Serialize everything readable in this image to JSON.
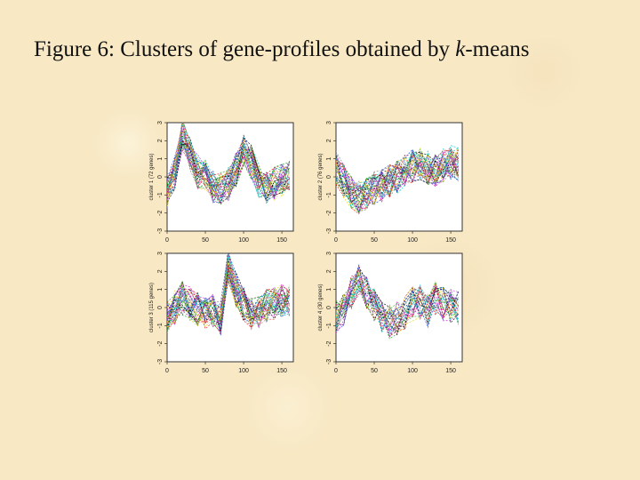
{
  "slide": {
    "title_prefix": "Figure 6: Clusters of gene-profiles obtained by ",
    "title_italic": "k",
    "title_suffix": "-means"
  },
  "chart_data": [
    {
      "type": "line",
      "panel": "top-left",
      "ylabel": "cluster 1 (72 genes)",
      "xticks": [
        "0",
        "50",
        "100",
        "150"
      ],
      "yticks": [
        "-3",
        "-2",
        "-1",
        "0",
        "1",
        "2",
        "3"
      ],
      "xlim": [
        0,
        165
      ],
      "ylim": [
        -3,
        3
      ],
      "n_profiles": 40,
      "mean_profile": {
        "x": [
          0,
          10,
          20,
          30,
          40,
          50,
          60,
          70,
          80,
          90,
          100,
          110,
          120,
          130,
          140,
          150,
          160
        ],
        "y": [
          -0.8,
          0.2,
          2.3,
          1.2,
          0.3,
          0,
          -0.5,
          -0.7,
          -0.4,
          0.4,
          1.4,
          0.8,
          -0.2,
          -0.6,
          -0.4,
          -0.2,
          0
        ]
      }
    },
    {
      "type": "line",
      "panel": "top-right",
      "ylabel": "cluster 2 (76 genes)",
      "xticks": [
        "0",
        "50",
        "100",
        "150"
      ],
      "yticks": [
        "-3",
        "-2",
        "-1",
        "0",
        "1",
        "2",
        "3"
      ],
      "xlim": [
        0,
        165
      ],
      "ylim": [
        -3,
        3
      ],
      "n_profiles": 40,
      "mean_profile": {
        "x": [
          0,
          10,
          20,
          30,
          40,
          50,
          60,
          70,
          80,
          90,
          100,
          110,
          120,
          130,
          140,
          150,
          160
        ],
        "y": [
          0.5,
          -0.2,
          -0.8,
          -1.1,
          -0.9,
          -0.6,
          -0.5,
          -0.2,
          0,
          0.4,
          0.6,
          0.7,
          0.5,
          0.4,
          0.6,
          0.8,
          0.7
        ]
      }
    },
    {
      "type": "line",
      "panel": "bottom-left",
      "ylabel": "cluster 3 (115 genes)",
      "xticks": [
        "0",
        "50",
        "100",
        "150"
      ],
      "yticks": [
        "-3",
        "-2",
        "-1",
        "0",
        "1",
        "2",
        "3"
      ],
      "xlim": [
        0,
        165
      ],
      "ylim": [
        -3,
        3
      ],
      "n_profiles": 40,
      "mean_profile": {
        "x": [
          0,
          10,
          20,
          30,
          40,
          50,
          60,
          70,
          80,
          90,
          100,
          110,
          120,
          130,
          140,
          150,
          160
        ],
        "y": [
          -0.5,
          0,
          0.5,
          0.2,
          -0.1,
          -0.3,
          -0.2,
          -0.6,
          2.4,
          1,
          0.2,
          -0.4,
          -0.2,
          0.1,
          0.3,
          0.4,
          0.3
        ]
      }
    },
    {
      "type": "line",
      "panel": "bottom-right",
      "ylabel": "cluster 4 (30 genes)",
      "xticks": [
        "0",
        "50",
        "100",
        "150"
      ],
      "yticks": [
        "-3",
        "-2",
        "-1",
        "0",
        "1",
        "2",
        "3"
      ],
      "xlim": [
        0,
        165
      ],
      "ylim": [
        -3,
        3
      ],
      "n_profiles": 30,
      "mean_profile": {
        "x": [
          0,
          10,
          20,
          30,
          40,
          50,
          60,
          70,
          80,
          90,
          100,
          110,
          120,
          130,
          140,
          150,
          160
        ],
        "y": [
          -0.5,
          -0.2,
          0.8,
          1.5,
          0.8,
          0.1,
          -0.5,
          -0.8,
          -0.6,
          -0.3,
          0.2,
          0.3,
          -0.2,
          0.5,
          0.2,
          0.1,
          0
        ]
      }
    }
  ],
  "colors": {
    "background": "#f8e8c4",
    "plot_background": "#ffffff",
    "axis": "#333333",
    "profile_palette": [
      "#000000",
      "#e41a1c",
      "#1fa51f",
      "#1f3fe0",
      "#00c8c8",
      "#d020d0",
      "#e6d21a",
      "#888888"
    ]
  }
}
